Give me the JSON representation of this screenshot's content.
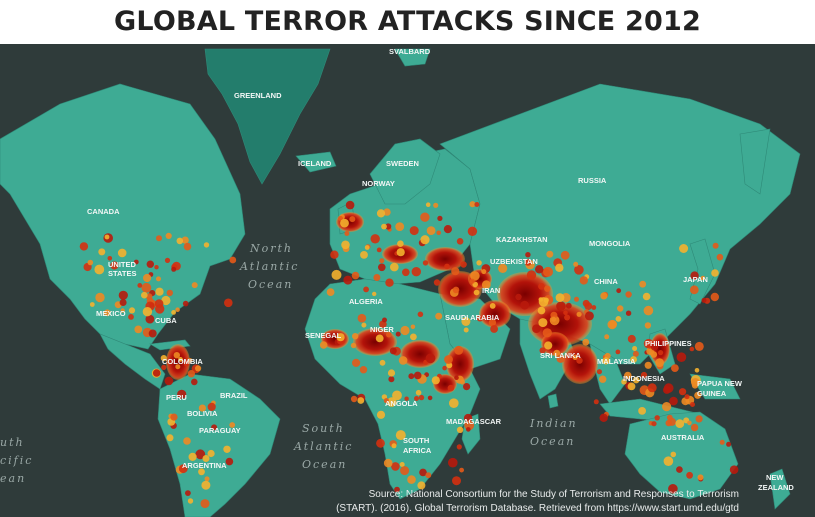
{
  "title": "GLOBAL TERROR ATTACKS SINCE 2012",
  "colors": {
    "ocean": "#2f3b3a",
    "land": "#3eab94",
    "land_dark": "#1f6b5e",
    "hot": "#8b0000",
    "mid": "#d62b10",
    "cool": "#f2a22a"
  },
  "countries": [
    {
      "id": "svalbard",
      "text": "SVALBARD"
    },
    {
      "id": "greenland",
      "text": "GREENLAND"
    },
    {
      "id": "iceland",
      "text": "ICELAND"
    },
    {
      "id": "sweden",
      "text": "SWEDEN"
    },
    {
      "id": "norway",
      "text": "NORWAY"
    },
    {
      "id": "russia",
      "text": "RUSSIA"
    },
    {
      "id": "canada",
      "text": "CANADA"
    },
    {
      "id": "kazakhstan",
      "text": "KAZAKHSTAN"
    },
    {
      "id": "mongolia",
      "text": "MONGOLIA"
    },
    {
      "id": "uzbekistan",
      "text": "UZBEKISTAN"
    },
    {
      "id": "united-states-1",
      "text": "UNITED"
    },
    {
      "id": "united-states-2",
      "text": "STATES"
    },
    {
      "id": "japan",
      "text": "JAPAN"
    },
    {
      "id": "china",
      "text": "CHINA"
    },
    {
      "id": "algeria",
      "text": "ALGERIA"
    },
    {
      "id": "mexico",
      "text": "MEXICO"
    },
    {
      "id": "cuba",
      "text": "CUBA"
    },
    {
      "id": "iran",
      "text": "IRAN"
    },
    {
      "id": "saudi",
      "text": "SAUDI ARABIA"
    },
    {
      "id": "senegal",
      "text": "SENEGAL"
    },
    {
      "id": "niger",
      "text": "NIGER"
    },
    {
      "id": "philippines",
      "text": "PHILIPPINES"
    },
    {
      "id": "sri-lanka",
      "text": "SRI LANKA"
    },
    {
      "id": "malaysia",
      "text": "MALAYSIA"
    },
    {
      "id": "colombia",
      "text": "COLOMBIA"
    },
    {
      "id": "indonesia",
      "text": "INDONESIA"
    },
    {
      "id": "brazil",
      "text": "BRAZIL"
    },
    {
      "id": "peru",
      "text": "PERU"
    },
    {
      "id": "png-1",
      "text": "PAPUA NEW"
    },
    {
      "id": "png-2",
      "text": "GUINEA"
    },
    {
      "id": "bolivia",
      "text": "BOLIVIA"
    },
    {
      "id": "angola",
      "text": "ANGOLA"
    },
    {
      "id": "paraguay",
      "text": "PARAGUAY"
    },
    {
      "id": "madagascar",
      "text": "MADAGASCAR"
    },
    {
      "id": "south-africa-1",
      "text": "SOUTH"
    },
    {
      "id": "south-africa-2",
      "text": "AFRICA"
    },
    {
      "id": "australia",
      "text": "AUSTRALIA"
    },
    {
      "id": "argentina",
      "text": "ARGENTINA"
    },
    {
      "id": "nz-1",
      "text": "NEW"
    },
    {
      "id": "nz-2",
      "text": "ZEALAND"
    }
  ],
  "oceans": [
    {
      "id": "north-atlantic-1",
      "text": "North"
    },
    {
      "id": "north-atlantic-2",
      "text": "Atlantic"
    },
    {
      "id": "north-atlantic-3",
      "text": "Ocean"
    },
    {
      "id": "south-atlantic-1",
      "text": "South"
    },
    {
      "id": "south-atlantic-2",
      "text": "Atlantic"
    },
    {
      "id": "south-atlantic-3",
      "text": "Ocean"
    },
    {
      "id": "indian-1",
      "text": "Indian"
    },
    {
      "id": "indian-2",
      "text": "Ocean"
    },
    {
      "id": "south-pacific-1",
      "text": "uth"
    },
    {
      "id": "south-pacific-2",
      "text": "cific"
    },
    {
      "id": "south-pacific-3",
      "text": "ean"
    }
  ],
  "source": {
    "line1": "Source: National Consortium for the Study of Terrorism and Responses to Terrorism",
    "line2": "(START). (2016). Global Terrorism Database. Retrieved from https://www.start.umd.edu/gtd"
  }
}
